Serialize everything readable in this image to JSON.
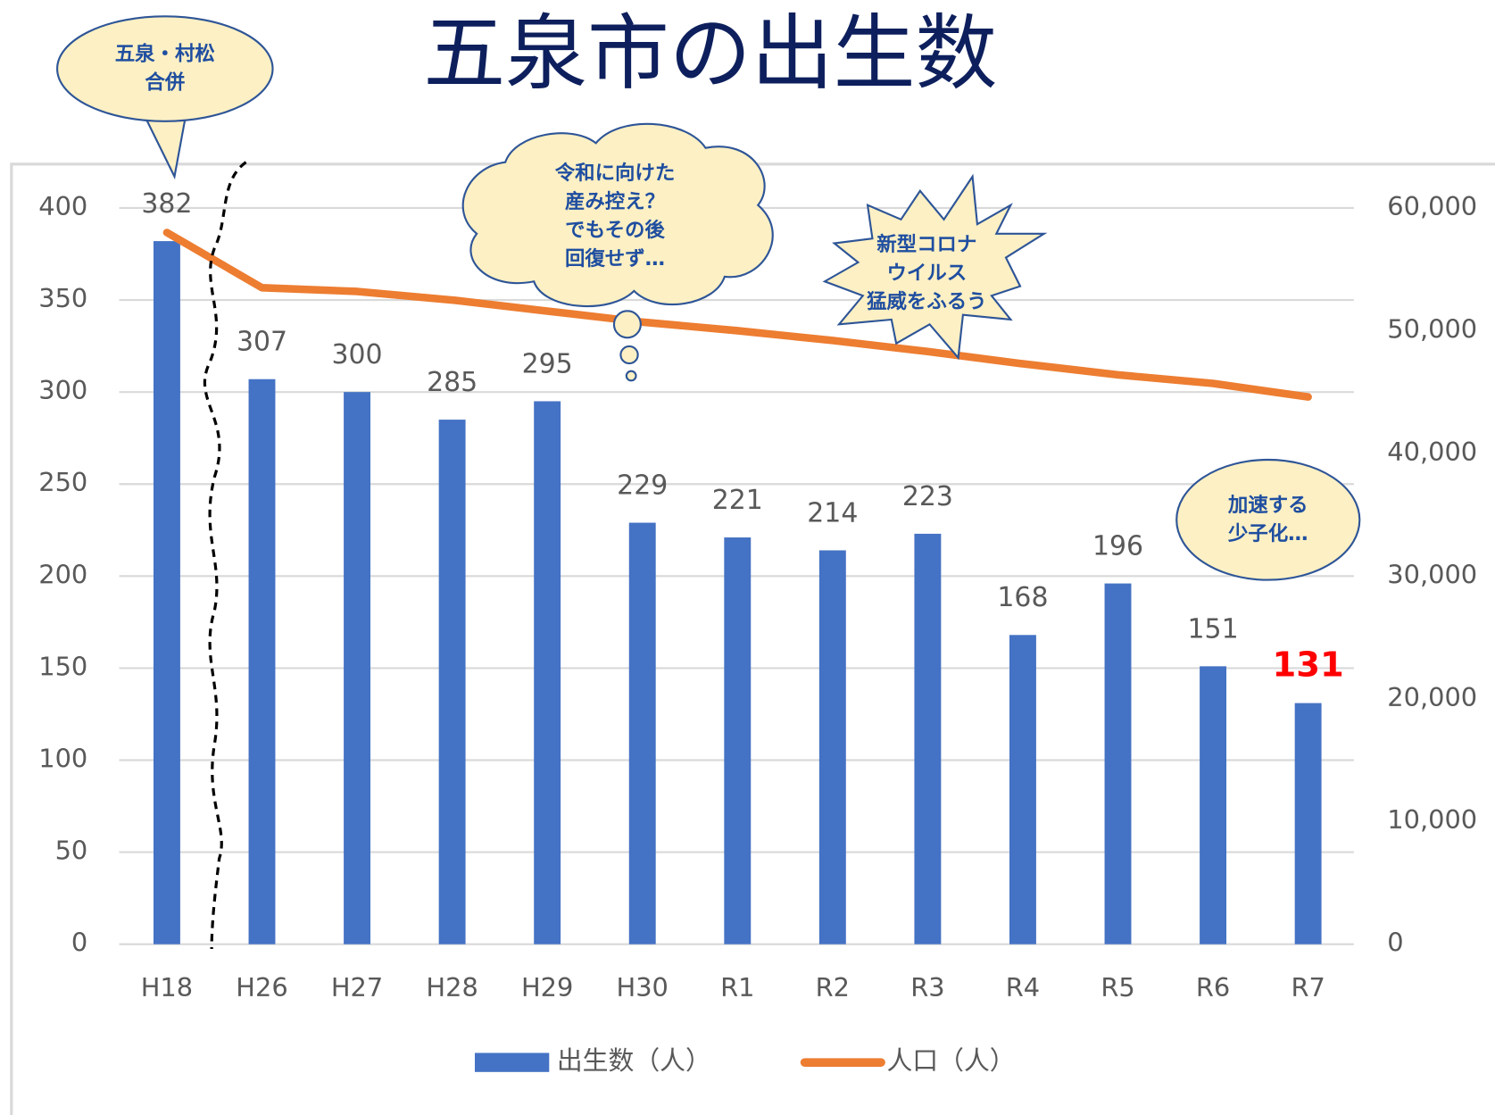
{
  "chart_data": {
    "type": "bar_line",
    "title": "五泉市の出生数",
    "categories": [
      "H18",
      "H26",
      "H27",
      "H28",
      "H29",
      "H30",
      "R1",
      "R2",
      "R3",
      "R4",
      "R5",
      "R6",
      "R7"
    ],
    "series": [
      {
        "name": "出生数（人）",
        "type": "bar",
        "color": "#4472c4",
        "values": [
          382,
          307,
          300,
          285,
          295,
          229,
          221,
          214,
          223,
          168,
          196,
          151,
          131
        ],
        "value_label_colors": [
          "#595959",
          "#595959",
          "#595959",
          "#595959",
          "#595959",
          "#595959",
          "#595959",
          "#595959",
          "#595959",
          "#595959",
          "#595959",
          "#595959",
          "#ff0000"
        ]
      },
      {
        "name": "人口（人）",
        "type": "line",
        "axis": "y2",
        "color": "#ed7d31",
        "values": [
          58000,
          53500,
          53200,
          52500,
          51600,
          50700,
          50000,
          49200,
          48300,
          47300,
          46400,
          45700,
          44600
        ]
      }
    ],
    "ylim": [
      0,
      400
    ],
    "yticks": [
      0,
      50,
      100,
      150,
      200,
      250,
      300,
      350,
      400
    ],
    "y2lim": [
      0,
      60000
    ],
    "y2ticks": [
      0,
      {
        "value": 10000,
        "label": "10,000"
      },
      {
        "value": 20000,
        "label": "20,000"
      },
      {
        "value": 30000,
        "label": "30,000"
      },
      {
        "value": 40000,
        "label": "40,000"
      },
      {
        "value": 50000,
        "label": "50,000"
      },
      {
        "value": 60000,
        "label": "60,000"
      }
    ],
    "grid": true,
    "legend": "bottom",
    "annotations": [
      {
        "lines": [
          "五泉・村松",
          "合併"
        ]
      },
      {
        "lines": [
          "令和に向けた",
          "産み控え？",
          "でもその後",
          "回復せず…"
        ]
      },
      {
        "lines": [
          "新型コロナ",
          "ウイルス",
          "猛威をふるう"
        ]
      },
      {
        "lines": [
          "加速する",
          "少子化…"
        ]
      }
    ]
  }
}
